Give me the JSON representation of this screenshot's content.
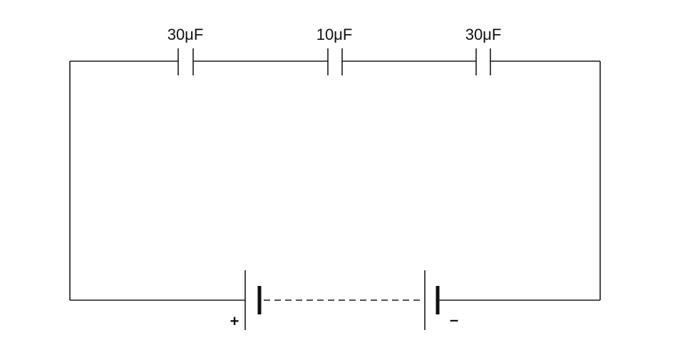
{
  "capacitors": [
    {
      "label": "30μF"
    },
    {
      "label": "10μF"
    },
    {
      "label": "30μF"
    }
  ],
  "battery": {
    "positive_label": "+",
    "negative_label": "–"
  }
}
